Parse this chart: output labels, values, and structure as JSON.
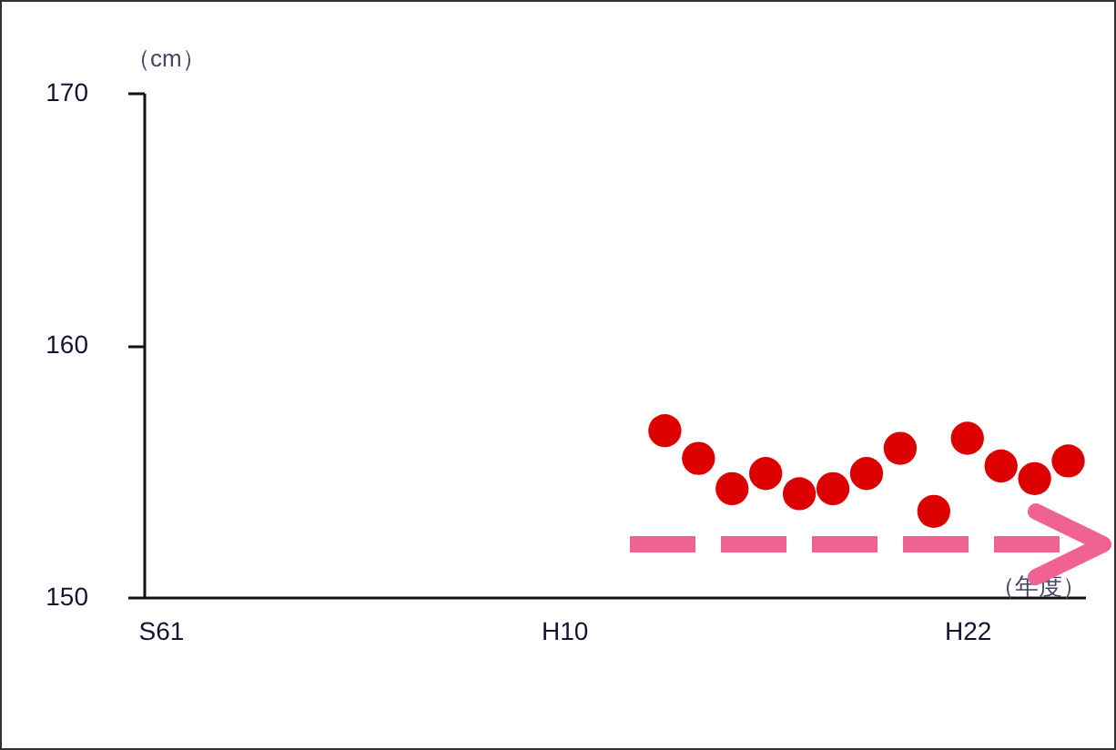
{
  "chart_data": {
    "type": "scatter",
    "xlabel": "（年度）",
    "ylabel": "（cm）",
    "categories": [
      "S61",
      null,
      null,
      null,
      null,
      null,
      null,
      null,
      null,
      null,
      null,
      null,
      "H10",
      null,
      null,
      null,
      null,
      null,
      null,
      null,
      null,
      null,
      null,
      null,
      "H22",
      null,
      null,
      null
    ],
    "series": [
      {
        "color": "#dd0000",
        "values": [
          null,
          null,
          null,
          null,
          null,
          null,
          null,
          null,
          null,
          null,
          null,
          null,
          null,
          null,
          null,
          156.6,
          155.5,
          154.3,
          154.9,
          154.1,
          154.3,
          154.9,
          155.9,
          153.4,
          156.3,
          155.2,
          154.7,
          155.4
        ]
      }
    ],
    "ylim": [
      150,
      170
    ],
    "yticks": [
      150,
      160,
      170
    ],
    "marker": "circle"
  }
}
